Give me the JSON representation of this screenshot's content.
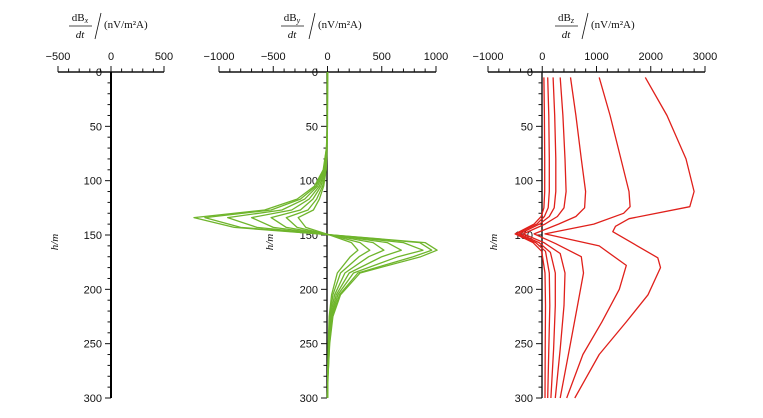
{
  "chart_data": [
    {
      "type": "line",
      "title": {
        "num": "dB",
        "sub": "x",
        "den": "dt",
        "unit": "(nV/m²A)"
      },
      "ylabel": "h/m",
      "xlim": [
        -500,
        500
      ],
      "ylim": [
        0,
        300
      ],
      "xticks": [
        -500,
        0,
        500
      ],
      "yticks": [
        0,
        50,
        100,
        150,
        200,
        250,
        300
      ],
      "color": "#000000",
      "series": [
        {
          "x": [
            0,
            0
          ],
          "y": [
            0,
            300
          ]
        }
      ]
    },
    {
      "type": "line",
      "title": {
        "num": "dB",
        "sub": "y",
        "den": "dt",
        "unit": "(nV/m²A)"
      },
      "ylabel": "h/m",
      "xlim": [
        -1000,
        1000
      ],
      "ylim": [
        0,
        300
      ],
      "xticks": [
        -1000,
        -500,
        0,
        500,
        1000
      ],
      "yticks": [
        0,
        50,
        100,
        150,
        200,
        250,
        300
      ],
      "color": "#6fb52c",
      "series": [
        {
          "x": [
            0,
            -2,
            -10,
            -40,
            -120,
            -280,
            -580,
            -1230,
            -860,
            50,
            900,
            1010,
            860,
            300,
            120,
            50,
            20,
            5,
            0
          ],
          "y": [
            0,
            50,
            70,
            90,
            105,
            117,
            127,
            134,
            143,
            150,
            157,
            164,
            170,
            185,
            205,
            225,
            250,
            280,
            300
          ]
        },
        {
          "x": [
            0,
            -2,
            -9,
            -35,
            -105,
            -250,
            -520,
            -1130,
            -800,
            45,
            850,
            960,
            790,
            280,
            110,
            45,
            18,
            5,
            0
          ],
          "y": [
            0,
            50,
            70,
            90,
            105,
            117,
            127,
            134,
            143,
            150,
            157,
            164,
            170,
            185,
            205,
            225,
            250,
            280,
            300
          ]
        },
        {
          "x": [
            0,
            -2,
            -8,
            -30,
            -90,
            -210,
            -420,
            -920,
            -650,
            40,
            700,
            880,
            650,
            240,
            95,
            40,
            15,
            4,
            0
          ],
          "y": [
            0,
            50,
            70,
            90,
            105,
            117,
            127,
            134,
            143,
            150,
            157,
            164,
            170,
            185,
            205,
            225,
            250,
            280,
            300
          ]
        },
        {
          "x": [
            0,
            -2,
            -7,
            -25,
            -75,
            -170,
            -330,
            -700,
            -500,
            35,
            550,
            680,
            500,
            200,
            80,
            35,
            13,
            3,
            0
          ],
          "y": [
            0,
            50,
            70,
            90,
            105,
            117,
            127,
            134,
            143,
            150,
            157,
            164,
            170,
            185,
            205,
            225,
            250,
            280,
            300
          ]
        },
        {
          "x": [
            0,
            -1,
            -6,
            -20,
            -60,
            -135,
            -250,
            -520,
            -380,
            30,
            420,
            520,
            380,
            160,
            65,
            28,
            10,
            3,
            0
          ],
          "y": [
            0,
            50,
            70,
            90,
            105,
            117,
            127,
            134,
            143,
            150,
            157,
            164,
            170,
            185,
            205,
            225,
            250,
            280,
            300
          ]
        },
        {
          "x": [
            0,
            -1,
            -5,
            -15,
            -45,
            -100,
            -180,
            -380,
            -280,
            25,
            300,
            390,
            290,
            120,
            50,
            22,
            8,
            2,
            0
          ],
          "y": [
            0,
            50,
            70,
            90,
            105,
            117,
            127,
            134,
            143,
            150,
            157,
            164,
            170,
            185,
            205,
            225,
            250,
            280,
            300
          ]
        },
        {
          "x": [
            0,
            -1,
            -4,
            -12,
            -35,
            -75,
            -130,
            -270,
            -200,
            20,
            220,
            280,
            210,
            90,
            38,
            16,
            6,
            2,
            0
          ],
          "y": [
            0,
            50,
            70,
            90,
            105,
            117,
            127,
            134,
            143,
            150,
            157,
            164,
            170,
            185,
            205,
            225,
            250,
            280,
            300
          ]
        }
      ]
    },
    {
      "type": "line",
      "title": {
        "num": "dB",
        "sub": "z",
        "den": "dt",
        "unit": "(nV/m²A)"
      },
      "ylabel": "h/m",
      "xlim": [
        -1000,
        3000
      ],
      "ylim": [
        0,
        300
      ],
      "xticks": [
        -1000,
        0,
        1000,
        2000,
        3000
      ],
      "yticks": [
        0,
        50,
        100,
        150,
        200,
        250,
        300
      ],
      "color": "#e0201b",
      "series": [
        {
          "x": [
            1900,
            2300,
            2650,
            2800,
            2720,
            1600,
            1350,
            1300,
            2130,
            2180,
            1950,
            1550,
            1050,
            600
          ],
          "y": [
            5,
            40,
            80,
            110,
            124,
            135,
            142,
            147,
            171,
            180,
            205,
            230,
            260,
            300
          ]
        },
        {
          "x": [
            1050,
            1250,
            1450,
            1600,
            1620,
            1500,
            950,
            50,
            1050,
            1550,
            1420,
            1100,
            750,
            450
          ],
          "y": [
            5,
            40,
            80,
            110,
            124,
            130,
            140,
            149,
            160,
            178,
            200,
            230,
            260,
            300
          ]
        },
        {
          "x": [
            520,
            620,
            720,
            800,
            780,
            620,
            300,
            -150,
            250,
            720,
            760,
            650,
            500,
            330
          ],
          "y": [
            5,
            40,
            80,
            110,
            125,
            133,
            140,
            149,
            158,
            170,
            185,
            215,
            255,
            300
          ]
        },
        {
          "x": [
            330,
            380,
            420,
            440,
            400,
            280,
            50,
            -350,
            30,
            330,
            420,
            400,
            330,
            240
          ],
          "y": [
            5,
            40,
            80,
            110,
            125,
            133,
            140,
            149,
            157,
            167,
            185,
            215,
            255,
            300
          ]
        },
        {
          "x": [
            200,
            230,
            250,
            250,
            220,
            130,
            -50,
            -420,
            -60,
            150,
            240,
            240,
            210,
            160
          ],
          "y": [
            5,
            40,
            80,
            110,
            125,
            133,
            140,
            149,
            157,
            166,
            185,
            215,
            255,
            300
          ]
        },
        {
          "x": [
            100,
            120,
            130,
            130,
            110,
            40,
            -100,
            -470,
            -120,
            60,
            130,
            140,
            120,
            100
          ],
          "y": [
            5,
            40,
            80,
            110,
            125,
            133,
            140,
            149,
            157,
            165,
            185,
            215,
            255,
            300
          ]
        },
        {
          "x": [
            30,
            40,
            45,
            45,
            30,
            -20,
            -150,
            -500,
            -170,
            -10,
            50,
            60,
            55,
            50
          ],
          "y": [
            5,
            40,
            80,
            110,
            125,
            133,
            140,
            149,
            157,
            165,
            185,
            215,
            255,
            300
          ]
        }
      ]
    }
  ]
}
